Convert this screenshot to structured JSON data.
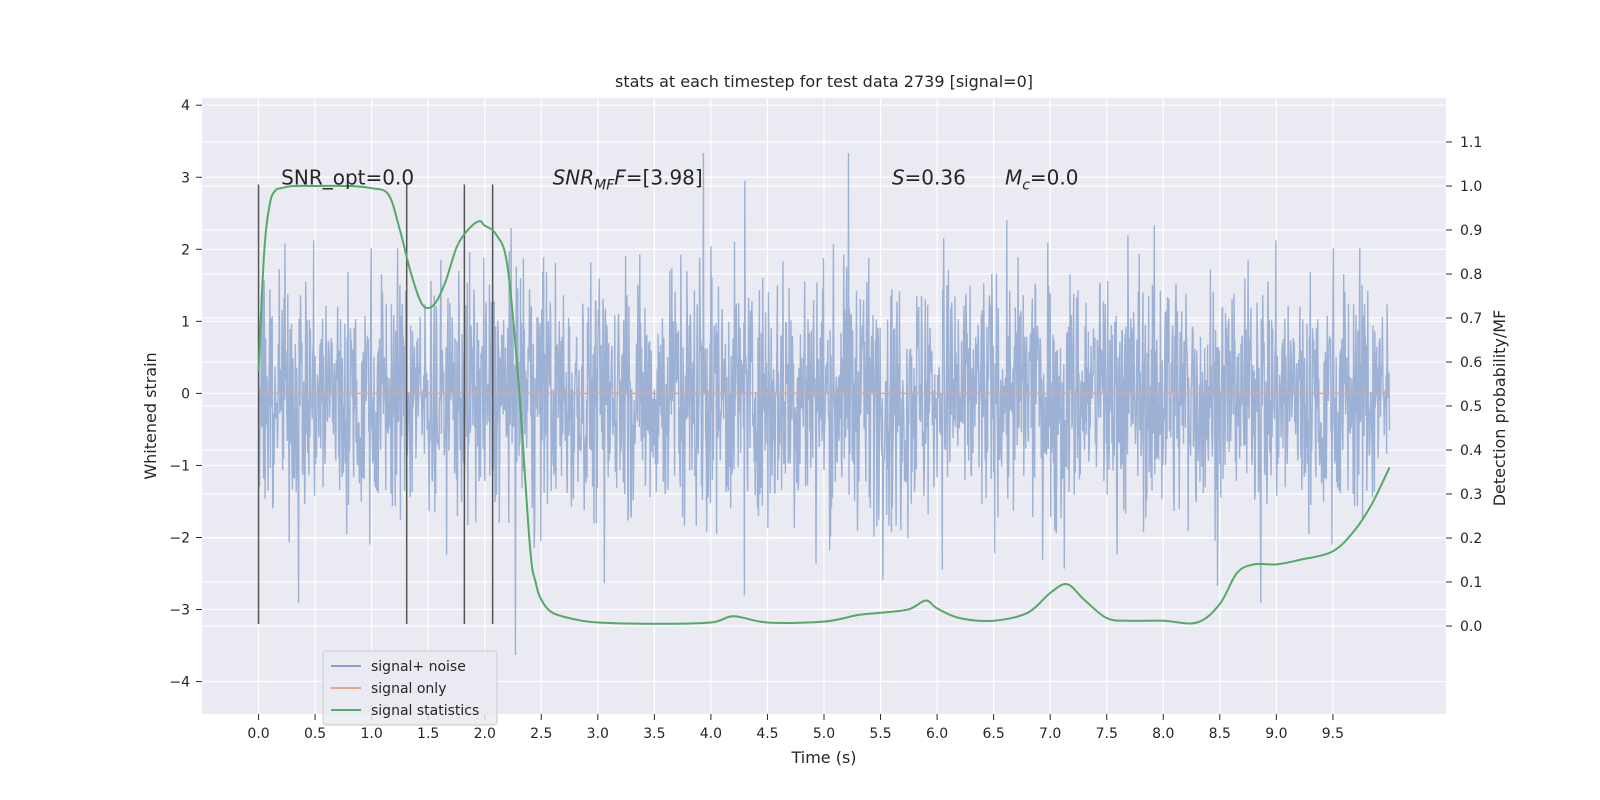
{
  "chart_data": {
    "type": "line",
    "title": "stats at each timestep for test data 2739 [signal=0]",
    "xlabel": "Time (s)",
    "ylabel": "Whitened strain",
    "ylabel_right": "Detection probability/MF",
    "xlim": [
      -0.5,
      10.5
    ],
    "ylim": [
      -4.45,
      4.1
    ],
    "ylim_right": [
      -0.2,
      1.2
    ],
    "x_ticks": [
      0.0,
      0.5,
      1.0,
      1.5,
      2.0,
      2.5,
      3.0,
      3.5,
      4.0,
      4.5,
      5.0,
      5.5,
      6.0,
      6.5,
      7.0,
      7.5,
      8.0,
      8.5,
      9.0,
      9.5
    ],
    "x_tick_labels": [
      "0.0",
      "0.5",
      "1.0",
      "1.5",
      "2.0",
      "2.5",
      "3.0",
      "3.5",
      "4.0",
      "4.5",
      "5.0",
      "5.5",
      "6.0",
      "6.5",
      "7.0",
      "7.5",
      "8.0",
      "8.5",
      "9.0",
      "9.5"
    ],
    "y_ticks": [
      -4,
      -3,
      -2,
      -1,
      0,
      1,
      2,
      3,
      4
    ],
    "y_tick_labels": [
      "−4",
      "−3",
      "−2",
      "−1",
      "0",
      "1",
      "2",
      "3",
      "4"
    ],
    "y_right_ticks": [
      0.0,
      0.1,
      0.2,
      0.3,
      0.4,
      0.5,
      0.6,
      0.7,
      0.8,
      0.9,
      1.0,
      1.1
    ],
    "y_right_tick_labels": [
      "0.0",
      "0.1",
      "0.2",
      "0.3",
      "0.4",
      "0.5",
      "0.6",
      "0.7",
      "0.8",
      "0.9",
      "1.0",
      "1.1"
    ],
    "grid": true,
    "legend": {
      "position": "lower-left",
      "entries": [
        {
          "label": "signal+ noise",
          "color": "#8da0cb"
        },
        {
          "label": "signal only",
          "color": "#e5a58a"
        },
        {
          "label": "signal statistics",
          "color": "#55a868"
        }
      ]
    },
    "series": [
      {
        "name": "signal+ noise",
        "color": "#99aed3",
        "x_range": [
          0.0,
          10.0
        ],
        "envelope_typical": [
          -1.3,
          1.1
        ],
        "extremes": [
          -4.0,
          3.7
        ],
        "description": "dense noisy whitened strain"
      },
      {
        "name": "signal only",
        "color": "#e5a58a",
        "x": [
          0.0,
          10.0
        ],
        "y": [
          0.0,
          0.0
        ]
      },
      {
        "name": "signal statistics",
        "color": "#55a868",
        "axis": "right",
        "x": [
          0.0,
          0.05,
          0.1,
          0.15,
          0.2,
          0.3,
          0.5,
          0.8,
          1.0,
          1.15,
          1.25,
          1.35,
          1.45,
          1.55,
          1.65,
          1.75,
          1.85,
          1.95,
          2.0,
          2.1,
          2.2,
          2.3,
          2.4,
          2.45,
          2.5,
          2.6,
          2.8,
          3.0,
          3.5,
          4.0,
          4.2,
          4.5,
          5.0,
          5.3,
          5.5,
          5.75,
          5.9,
          6.0,
          6.2,
          6.5,
          6.8,
          7.0,
          7.15,
          7.3,
          7.5,
          7.7,
          8.0,
          8.3,
          8.5,
          8.65,
          8.8,
          9.0,
          9.2,
          9.5,
          9.7,
          9.85,
          10.0
        ],
        "y": [
          0.58,
          0.85,
          0.96,
          0.99,
          0.995,
          1.0,
          1.0,
          1.0,
          0.995,
          0.98,
          0.9,
          0.8,
          0.73,
          0.73,
          0.78,
          0.86,
          0.9,
          0.92,
          0.91,
          0.89,
          0.82,
          0.55,
          0.18,
          0.1,
          0.06,
          0.03,
          0.015,
          0.008,
          0.005,
          0.008,
          0.022,
          0.008,
          0.01,
          0.025,
          0.03,
          0.038,
          0.058,
          0.04,
          0.018,
          0.012,
          0.03,
          0.075,
          0.095,
          0.06,
          0.018,
          0.012,
          0.012,
          0.008,
          0.05,
          0.12,
          0.14,
          0.14,
          0.15,
          0.17,
          0.22,
          0.28,
          0.36
        ]
      }
    ],
    "vertical_markers": [
      {
        "x": 0.0,
        "y_range": [
          -3.2,
          2.9
        ]
      },
      {
        "x": 1.31,
        "y_range": [
          -3.2,
          2.9
        ]
      },
      {
        "x": 1.82,
        "y_range": [
          -3.2,
          2.9
        ]
      },
      {
        "x": 2.07,
        "y_range": [
          -3.2,
          2.9
        ]
      }
    ],
    "annotations": [
      {
        "id": "snr-opt",
        "text": "SNR_opt=0.0",
        "x": 0.2,
        "y": 2.9,
        "italic_part": "",
        "sub": "",
        "rest": ""
      },
      {
        "id": "snr-mf",
        "base": "SNR",
        "sub": "MF",
        "italic_part": "F",
        "rest": "=[3.98]",
        "x": 2.6,
        "y": 2.9
      },
      {
        "id": "s-val",
        "base": "S",
        "sub": "",
        "italic_part": "",
        "rest": "=0.36",
        "x": 5.6,
        "y": 2.9
      },
      {
        "id": "mc-val",
        "base": "M",
        "sub": "c",
        "italic_part": "",
        "rest": "=0.0",
        "x": 6.6,
        "y": 2.9
      }
    ]
  }
}
